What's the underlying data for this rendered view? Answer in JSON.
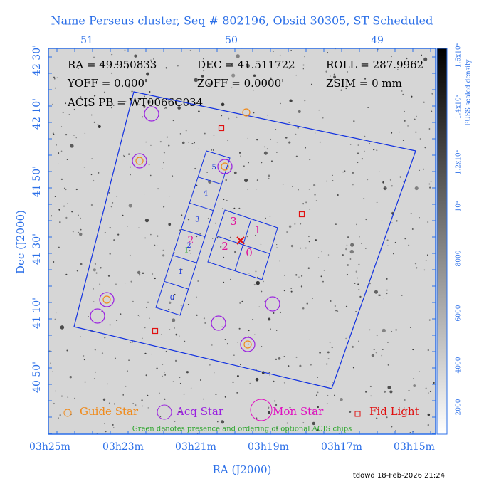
{
  "header": {
    "title": "Name Perseus cluster, Seq # 802196, Obsid 30305, ST Scheduled"
  },
  "axes": {
    "top_ticks": [
      "51",
      "50",
      "49"
    ],
    "bottom_ticks": [
      "03h25m",
      "03h23m",
      "03h21m",
      "03h19m",
      "03h17m",
      "03h15m"
    ],
    "left_ticks": [
      "42 30'",
      "42 10'",
      "41 50'",
      "41 30'",
      "41 10'",
      "40 50'"
    ],
    "x_label": "RA (J2000)",
    "y_label": "Dec (J2000)"
  },
  "colorbar": {
    "label": "PUSS scaled density",
    "ticks": [
      "1.6x10⁴",
      "1.4x10⁴",
      "1.2x10⁴",
      "10⁴",
      "8000",
      "6000",
      "4000",
      "2000"
    ]
  },
  "info": {
    "rows": [
      [
        "RA = 49.950833",
        "DEC = 41.511722",
        "ROLL = 287.9962"
      ],
      [
        "YOFF = 0.000'",
        "ZOFF = 0.0000'",
        "ZSIM = 0 mm"
      ],
      [
        "ACIS PB = WT0066C034"
      ]
    ]
  },
  "chips": {
    "s_array": [
      "5",
      "4",
      "3",
      "2",
      "1",
      "0"
    ],
    "optional": [
      "2",
      "1"
    ],
    "i_array": [
      "3",
      "1",
      "2",
      "0"
    ]
  },
  "legend": {
    "items": [
      "Guide Star",
      "Acq Star",
      "Mon Star",
      "Fid Light"
    ],
    "note": "Green denotes presence and ordering of optional ACIS chips"
  },
  "footer": {
    "stamp": "tdowd 18-Feb-2026 21:24"
  }
}
